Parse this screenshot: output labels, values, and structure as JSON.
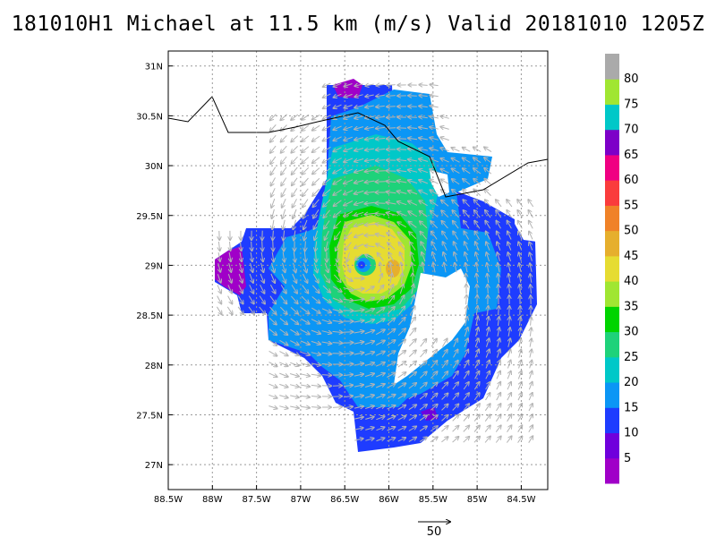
{
  "title": "181010H1 Michael at 11.5 km (m/s) Valid 20181010 1205Z",
  "axes": {
    "x_ticks": [
      "88.5W",
      "88W",
      "87.5W",
      "87W",
      "86.5W",
      "86W",
      "85.5W",
      "85W",
      "84.5W"
    ],
    "y_ticks": [
      "31N",
      "30.5N",
      "30N",
      "29.5N",
      "29N",
      "28.5N",
      "28N",
      "27.5N",
      "27N"
    ],
    "lon_range": [
      -88.5,
      -84.2
    ],
    "lat_range": [
      26.75,
      31.15
    ],
    "grid": true
  },
  "colorbar": {
    "labels": [
      "5",
      "10",
      "15",
      "20",
      "25",
      "30",
      "35",
      "40",
      "45",
      "50",
      "55",
      "60",
      "65",
      "70",
      "75",
      "80"
    ],
    "colors": [
      "#a000c8",
      "#6f00dc",
      "#1e3cff",
      "#0b96f5",
      "#00c8c8",
      "#1ed27a",
      "#00d400",
      "#a0e632",
      "#e6dc32",
      "#e6af2d",
      "#f08228",
      "#fa3c3c",
      "#f00082",
      "#7d00c8",
      "#00c8c8",
      "#a0e632",
      "#aaaaaa"
    ]
  },
  "vector_key": {
    "label": "50"
  },
  "colors": {
    "coastline": "#000000",
    "vectors": "#b4b4b4",
    "grid": "#9a9a9a"
  }
}
